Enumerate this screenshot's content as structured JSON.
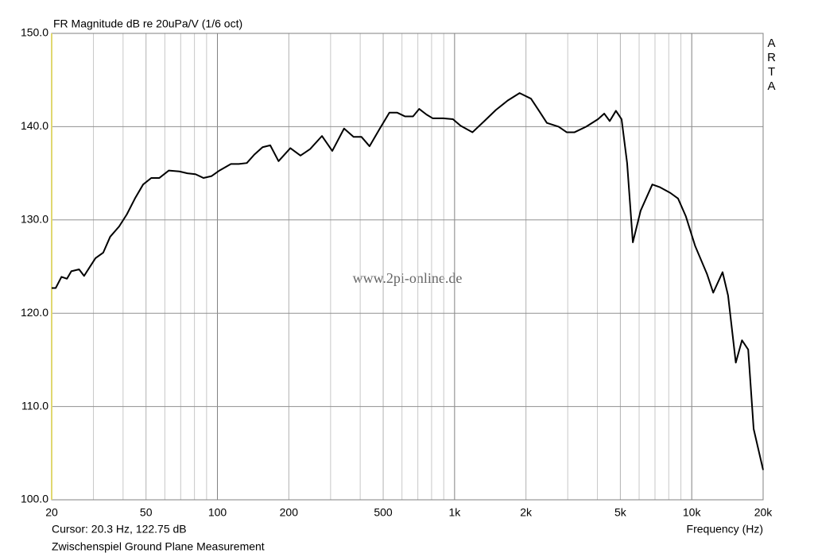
{
  "chart_data": {
    "type": "line",
    "title": "FR Magnitude dB re 20uPa/V (1/6 oct)",
    "side_label": "ARTA",
    "watermark": "www.2pi-online.de",
    "cursor_text": "Cursor: 20.3 Hz, 122.75 dB",
    "footer": "Zwischenspiel Ground Plane Measurement",
    "x_label": "Frequency (Hz)",
    "x_log": true,
    "grid": true,
    "minor_grid": true,
    "color": "#000000",
    "xlim": [
      20,
      20000
    ],
    "ylim": [
      100,
      150
    ],
    "xticks": [
      20,
      50,
      100,
      200,
      500,
      {
        "value": 1000,
        "label": "1k"
      },
      {
        "value": 2000,
        "label": "2k"
      },
      {
        "value": 5000,
        "label": "5k"
      },
      {
        "value": 10000,
        "label": "10k"
      },
      {
        "value": 20000,
        "label": "20k"
      }
    ],
    "yticks": [
      {
        "value": 100,
        "label": "100.0"
      },
      {
        "value": 110,
        "label": "110.0"
      },
      {
        "value": 120,
        "label": "120.0"
      },
      {
        "value": 130,
        "label": "130.0"
      },
      {
        "value": 140,
        "label": "140.0"
      },
      {
        "value": 150,
        "label": "150.0"
      }
    ],
    "x": [
      20,
      20.8,
      22,
      23.2,
      24.2,
      26.1,
      27.4,
      28.7,
      30.6,
      33,
      35.3,
      38.5,
      41.5,
      44.9,
      48.6,
      52.6,
      56.9,
      62.4,
      69.1,
      74.7,
      80.8,
      87.3,
      94.5,
      102,
      114,
      123,
      133,
      143,
      155,
      167,
      181,
      203,
      224,
      246,
      276,
      305,
      342,
      375,
      405,
      438,
      484,
      531,
      573,
      618,
      668,
      709,
      761,
      808,
      894,
      984,
      1060,
      1190,
      1335,
      1495,
      1675,
      1880,
      2100,
      2270,
      2450,
      2745,
      2970,
      3205,
      3590,
      4025,
      4275,
      4510,
      4790,
      5060,
      5340,
      5645,
      6090,
      6820,
      7355,
      8120,
      8755,
      9440,
      10340,
      11600,
      12320,
      13490,
      14230,
      15340,
      16290,
      17300,
      18240,
      20000
    ],
    "values": [
      122.7,
      122.7,
      123.9,
      123.7,
      124.5,
      124.7,
      124.0,
      124.8,
      125.9,
      126.5,
      128.2,
      129.3,
      130.6,
      132.3,
      133.8,
      134.5,
      134.5,
      135.3,
      135.2,
      135.0,
      134.9,
      134.5,
      134.7,
      135.3,
      136.0,
      136.0,
      136.1,
      137.0,
      137.8,
      138.0,
      136.3,
      137.7,
      136.9,
      137.6,
      139.0,
      137.4,
      139.8,
      138.9,
      138.9,
      137.9,
      139.8,
      141.5,
      141.5,
      141.1,
      141.1,
      141.9,
      141.3,
      140.9,
      140.9,
      140.8,
      140.1,
      139.4,
      140.6,
      141.8,
      142.8,
      143.6,
      143.0,
      141.7,
      140.4,
      140.0,
      139.4,
      139.4,
      140.0,
      140.8,
      141.4,
      140.6,
      141.7,
      140.8,
      136.1,
      127.6,
      131.0,
      133.8,
      133.5,
      132.9,
      132.3,
      130.4,
      127.2,
      124.2,
      122.2,
      124.4,
      121.9,
      114.7,
      117.1,
      116.1,
      107.6,
      103.2
    ]
  }
}
